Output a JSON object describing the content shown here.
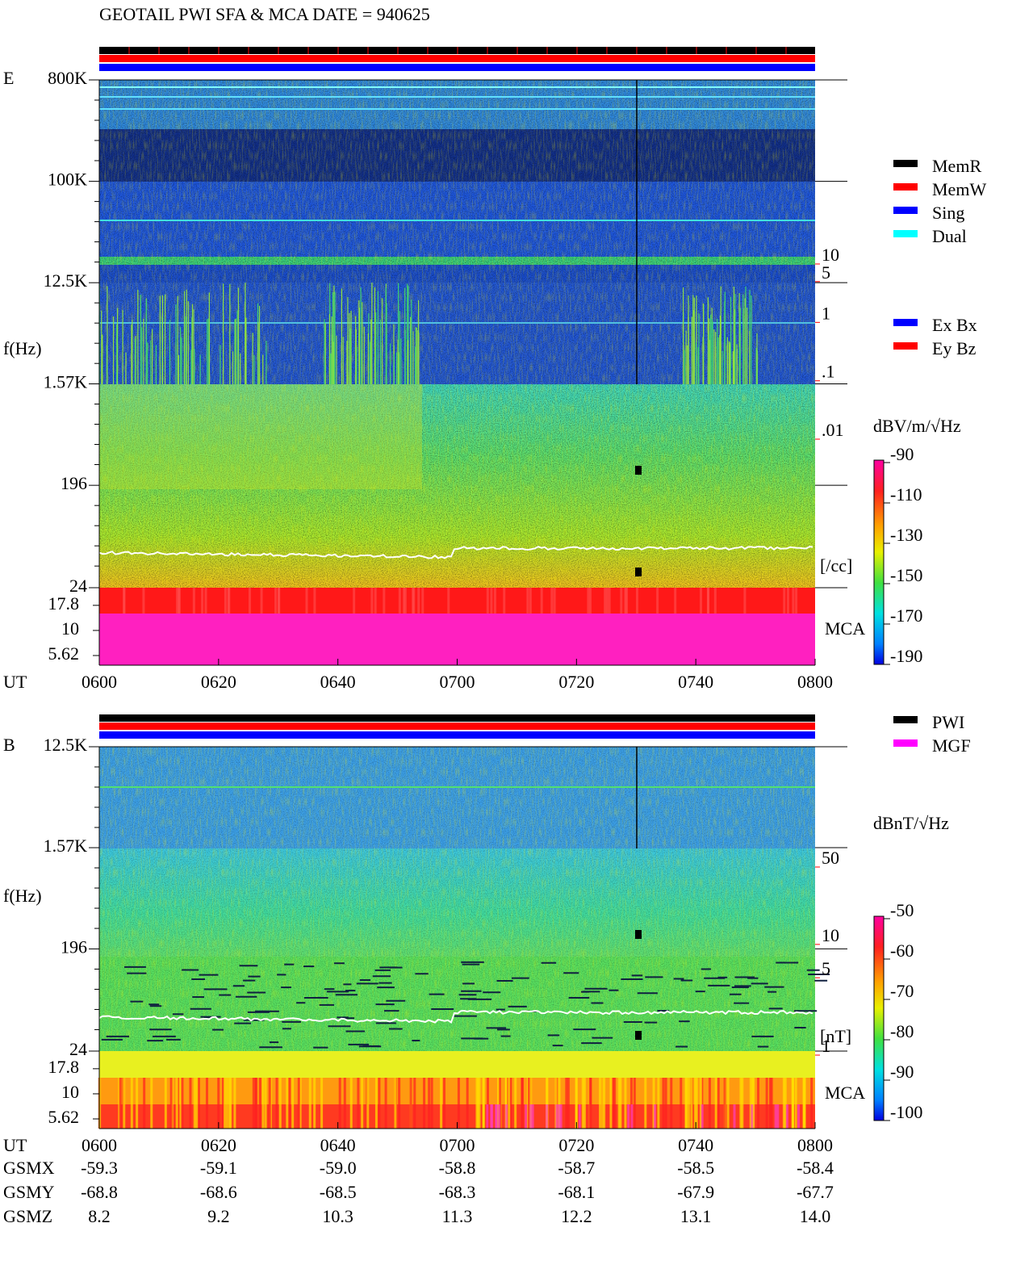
{
  "title": "GEOTAIL  PWI SFA & MCA   DATE = 940625",
  "legend_modes": [
    {
      "name": "MemR",
      "color": "#000000"
    },
    {
      "name": "MemW",
      "color": "#ff0000"
    },
    {
      "name": "Sing",
      "color": "#0000ff"
    },
    {
      "name": "Dual",
      "color": "#00ffff"
    }
  ],
  "legend_components": [
    {
      "name": "Ex Bx",
      "color": "#0000ff"
    },
    {
      "name": "Ey Bz",
      "color": "#ff0000"
    }
  ],
  "legend_instruments": [
    {
      "name": "PWI",
      "color": "#000000"
    },
    {
      "name": "MGF",
      "color": "#ff00ff"
    }
  ],
  "chart_data": [
    {
      "type": "spectrogram",
      "panel_label": "E",
      "ylabel": "f(Hz)",
      "log": true,
      "ylim": [
        24,
        800000
      ],
      "yticks": [
        {
          "value": 800000,
          "label": "800K"
        },
        {
          "value": 100000,
          "label": "100K"
        },
        {
          "value": 12500,
          "label": "12.5K"
        },
        {
          "value": 1570,
          "label": "1.57K"
        },
        196,
        24
      ],
      "mca_label": "MCA",
      "mca_ylim": [
        4.5,
        26.7
      ],
      "mca_yticks": [
        17.8,
        10,
        5.62
      ],
      "xlabel": "UT",
      "x": [
        "0600",
        "0620",
        "0640",
        "0700",
        "0720",
        "0740",
        "0800"
      ],
      "colorbar": {
        "label": "dBV/m/√Hz",
        "lim": [
          -190,
          -90
        ],
        "ticks": [
          -90,
          -110,
          -130,
          -150,
          -170,
          -190
        ]
      },
      "density": {
        "label": "[/cc]",
        "color": "#ff0000",
        "lim": [
          0.01,
          10
        ],
        "ticks": [
          10,
          5,
          1,
          {
            "value": 0.1,
            "label": ".1"
          },
          {
            "value": 0.01,
            "label": ".01"
          }
        ]
      }
    },
    {
      "type": "spectrogram",
      "panel_label": "B",
      "ylabel": "f(Hz)",
      "log": true,
      "ylim": [
        24,
        12500
      ],
      "yticks": [
        {
          "value": 12500,
          "label": "12.5K"
        },
        {
          "value": 1570,
          "label": "1.57K"
        },
        196,
        24
      ],
      "mca_label": "MCA",
      "mca_ylim": [
        4.5,
        26.7
      ],
      "mca_yticks": [
        17.8,
        10,
        5.62
      ],
      "xlabel": "UT",
      "x": [
        "0600",
        "0620",
        "0640",
        "0700",
        "0720",
        "0740",
        "0800"
      ],
      "colorbar": {
        "label": "dBnT/√Hz",
        "lim": [
          -100,
          -50
        ],
        "ticks": [
          -50,
          -60,
          -70,
          -80,
          -90,
          -100
        ]
      },
      "density": {
        "label": "[nT]",
        "color": "#ff0000",
        "lim": [
          1,
          50
        ],
        "ticks": [
          50,
          10,
          5,
          1
        ]
      }
    }
  ],
  "orbit": {
    "rows": [
      {
        "label": "GSMX",
        "values": [
          "-59.3",
          "-59.1",
          "-59.0",
          "-58.8",
          "-58.7",
          "-58.5",
          "-58.4"
        ]
      },
      {
        "label": "GSMY",
        "values": [
          "-68.8",
          "-68.6",
          "-68.5",
          "-68.3",
          "-68.1",
          "-67.9",
          "-67.7"
        ]
      },
      {
        "label": "GSMZ",
        "values": [
          "8.2",
          "9.2",
          "10.3",
          "11.3",
          "12.2",
          "13.1",
          "14.0"
        ]
      }
    ]
  }
}
